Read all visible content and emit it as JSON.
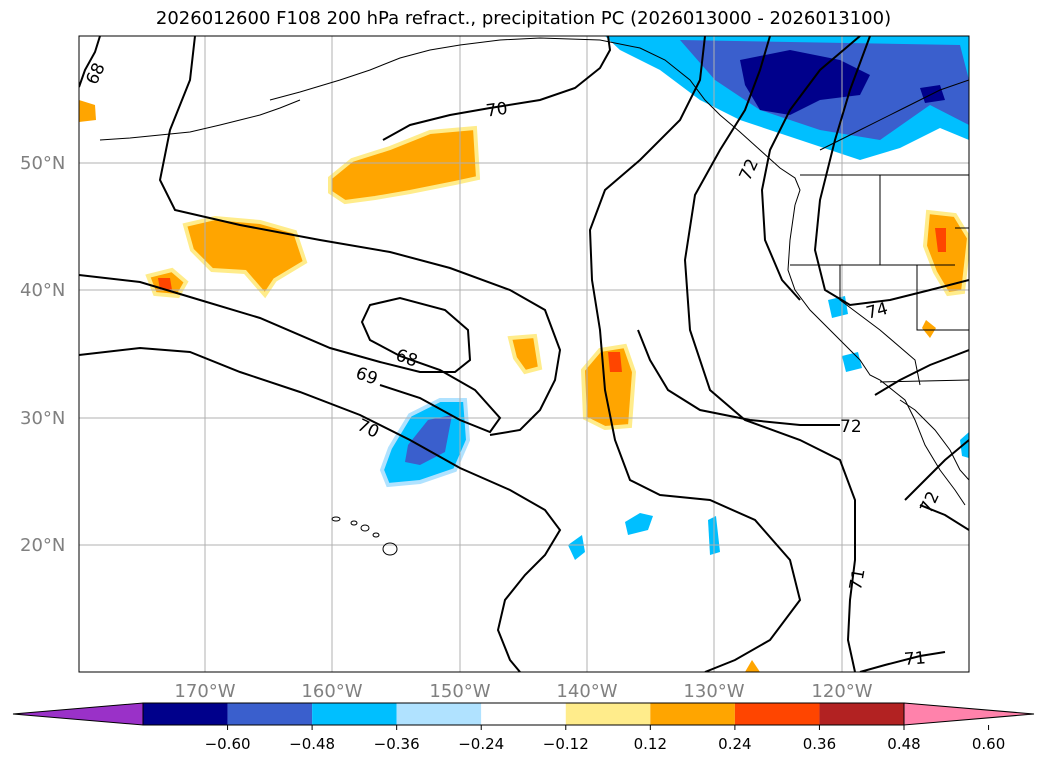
{
  "title": "2026012600 F108 200 hPa refract., precipitation PC (2026013000 - 2026013100)",
  "lat_labels": [
    "50°N",
    "40°N",
    "30°N",
    "20°N"
  ],
  "lon_labels": [
    "170°W",
    "160°W",
    "150°W",
    "140°W",
    "130°W",
    "120°W"
  ],
  "contour_labels": [
    "68",
    "68",
    "69",
    "70",
    "70",
    "71",
    "71",
    "72",
    "72",
    "72",
    "74"
  ],
  "colorbar": {
    "ticks": [
      "−0.60",
      "−0.48",
      "−0.36",
      "−0.24",
      "−0.12",
      "0.12",
      "0.24",
      "0.36",
      "0.48",
      "0.60"
    ],
    "colors": [
      "#9a31c8",
      "#00008b",
      "#3a5fcd",
      "#00bfff",
      "#b0e2ff",
      "#ffffff",
      "#ffec8b",
      "#ffa500",
      "#ff4500",
      "#b22222",
      "#ff82ab"
    ]
  }
}
